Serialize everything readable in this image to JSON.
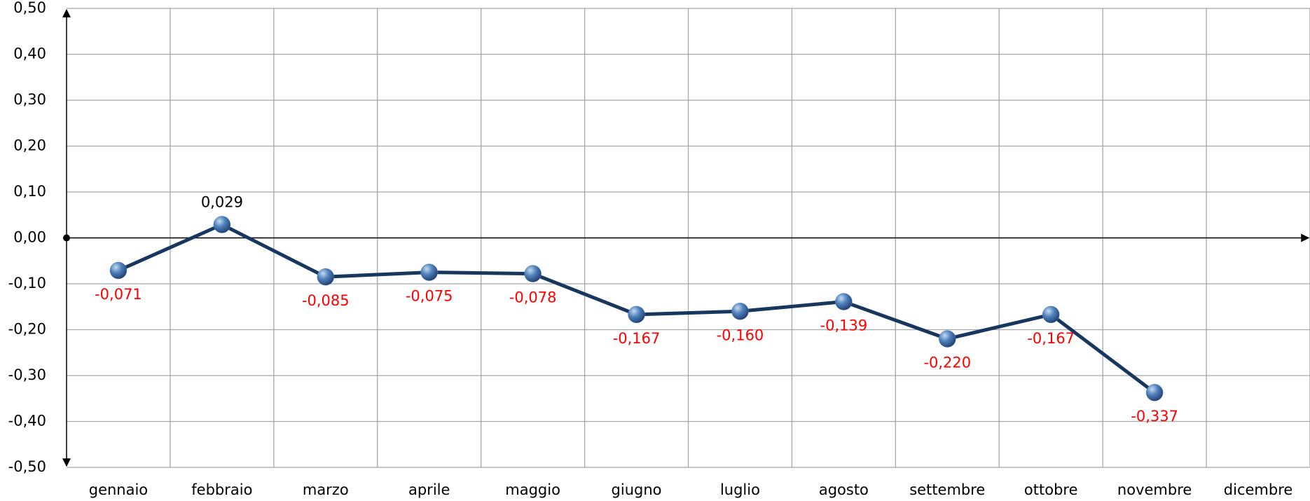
{
  "chart_data": {
    "type": "line",
    "categories": [
      "gennaio",
      "febbraio",
      "marzo",
      "aprile",
      "maggio",
      "giugno",
      "luglio",
      "agosto",
      "settembre",
      "ottobre",
      "novembre",
      "dicembre"
    ],
    "series": [
      {
        "color": "#17375e",
        "marker_color": "#4f81bd",
        "values": [
          -0.071,
          0.029,
          -0.085,
          -0.075,
          -0.078,
          -0.167,
          -0.16,
          -0.139,
          -0.22,
          -0.167,
          -0.337,
          null
        ],
        "value_labels": [
          "-0,071",
          "0,029",
          "-0,085",
          "-0,075",
          "-0,078",
          "-0,167",
          "-0,160",
          "-0,139",
          "-0,220",
          "-0,167",
          "-0,337",
          null
        ],
        "negative_label_color": "#ff0000",
        "positive_label_color": "#000000"
      }
    ],
    "ylim": [
      -0.5,
      0.5
    ],
    "yticks": [
      {
        "value": -0.5,
        "label": "-0,50"
      },
      {
        "value": -0.4,
        "label": "-0,40"
      },
      {
        "value": -0.3,
        "label": "-0,30"
      },
      {
        "value": -0.2,
        "label": "-0,20"
      },
      {
        "value": -0.1,
        "label": "-0,10"
      },
      {
        "value": 0,
        "label": "0,00"
      },
      {
        "value": 0.1,
        "label": "0,10"
      },
      {
        "value": 0.2,
        "label": "0,20"
      },
      {
        "value": 0.3,
        "label": "0,30"
      },
      {
        "value": 0.4,
        "label": "0,40"
      },
      {
        "value": 0.5,
        "label": "0,50"
      }
    ],
    "grid": true
  }
}
